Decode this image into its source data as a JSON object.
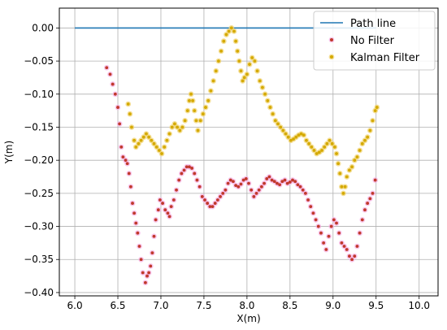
{
  "chart_data": {
    "type": "scatter",
    "title": "",
    "xlabel": "X(m)",
    "ylabel": "Y(m)",
    "xlim": [
      5.82,
      10.22
    ],
    "ylim": [
      -0.405,
      0.03
    ],
    "xticks": [
      6.0,
      6.5,
      7.0,
      7.5,
      8.0,
      8.5,
      9.0,
      9.5,
      10.0
    ],
    "xtick_labels": [
      "6.0",
      "6.5",
      "7.0",
      "7.5",
      "8.0",
      "8.5",
      "9.0",
      "9.5",
      "10.0"
    ],
    "yticks": [
      0.0,
      -0.05,
      -0.1,
      -0.15,
      -0.2,
      -0.25,
      -0.3,
      -0.35,
      -0.4
    ],
    "ytick_labels": [
      "0.00",
      "−0.05",
      "−0.10",
      "−0.15",
      "−0.20",
      "−0.25",
      "−0.30",
      "−0.35",
      "−0.40"
    ],
    "grid": true,
    "legend_position": "top-right",
    "series": [
      {
        "name": "Path line",
        "kind": "line",
        "color": "#1f77b4",
        "points": [
          [
            6.0,
            0.0
          ],
          [
            9.5,
            0.0
          ]
        ]
      },
      {
        "name": "No Filter",
        "kind": "scatter",
        "color": "#c0392b",
        "halo": "#f7b6e8",
        "points": [
          [
            6.37,
            -0.06
          ],
          [
            6.41,
            -0.07
          ],
          [
            6.44,
            -0.085
          ],
          [
            6.47,
            -0.1
          ],
          [
            6.5,
            -0.12
          ],
          [
            6.52,
            -0.145
          ],
          [
            6.54,
            -0.18
          ],
          [
            6.56,
            -0.195
          ],
          [
            6.59,
            -0.2
          ],
          [
            6.61,
            -0.205
          ],
          [
            6.63,
            -0.22
          ],
          [
            6.65,
            -0.24
          ],
          [
            6.67,
            -0.265
          ],
          [
            6.69,
            -0.28
          ],
          [
            6.71,
            -0.295
          ],
          [
            6.73,
            -0.31
          ],
          [
            6.75,
            -0.33
          ],
          [
            6.77,
            -0.35
          ],
          [
            6.79,
            -0.37
          ],
          [
            6.82,
            -0.385
          ],
          [
            6.84,
            -0.375
          ],
          [
            6.86,
            -0.37
          ],
          [
            6.88,
            -0.36
          ],
          [
            6.9,
            -0.34
          ],
          [
            6.92,
            -0.315
          ],
          [
            6.94,
            -0.29
          ],
          [
            6.97,
            -0.275
          ],
          [
            6.99,
            -0.26
          ],
          [
            7.02,
            -0.265
          ],
          [
            7.05,
            -0.275
          ],
          [
            7.08,
            -0.28
          ],
          [
            7.1,
            -0.285
          ],
          [
            7.12,
            -0.27
          ],
          [
            7.15,
            -0.26
          ],
          [
            7.18,
            -0.245
          ],
          [
            7.21,
            -0.23
          ],
          [
            7.24,
            -0.22
          ],
          [
            7.27,
            -0.215
          ],
          [
            7.3,
            -0.21
          ],
          [
            7.33,
            -0.21
          ],
          [
            7.36,
            -0.212
          ],
          [
            7.39,
            -0.22
          ],
          [
            7.42,
            -0.23
          ],
          [
            7.45,
            -0.24
          ],
          [
            7.48,
            -0.255
          ],
          [
            7.51,
            -0.26
          ],
          [
            7.54,
            -0.265
          ],
          [
            7.57,
            -0.27
          ],
          [
            7.6,
            -0.27
          ],
          [
            7.63,
            -0.265
          ],
          [
            7.66,
            -0.26
          ],
          [
            7.69,
            -0.255
          ],
          [
            7.72,
            -0.25
          ],
          [
            7.75,
            -0.245
          ],
          [
            7.78,
            -0.235
          ],
          [
            7.81,
            -0.23
          ],
          [
            7.84,
            -0.232
          ],
          [
            7.87,
            -0.238
          ],
          [
            7.9,
            -0.24
          ],
          [
            7.93,
            -0.236
          ],
          [
            7.96,
            -0.23
          ],
          [
            7.99,
            -0.228
          ],
          [
            8.02,
            -0.235
          ],
          [
            8.05,
            -0.245
          ],
          [
            8.08,
            -0.255
          ],
          [
            8.11,
            -0.25
          ],
          [
            8.14,
            -0.245
          ],
          [
            8.17,
            -0.24
          ],
          [
            8.2,
            -0.235
          ],
          [
            8.23,
            -0.228
          ],
          [
            8.26,
            -0.225
          ],
          [
            8.29,
            -0.23
          ],
          [
            8.32,
            -0.232
          ],
          [
            8.35,
            -0.235
          ],
          [
            8.38,
            -0.237
          ],
          [
            8.41,
            -0.232
          ],
          [
            8.44,
            -0.23
          ],
          [
            8.47,
            -0.235
          ],
          [
            8.5,
            -0.233
          ],
          [
            8.53,
            -0.23
          ],
          [
            8.56,
            -0.232
          ],
          [
            8.59,
            -0.237
          ],
          [
            8.62,
            -0.24
          ],
          [
            8.65,
            -0.245
          ],
          [
            8.68,
            -0.25
          ],
          [
            8.71,
            -0.26
          ],
          [
            8.74,
            -0.27
          ],
          [
            8.77,
            -0.28
          ],
          [
            8.8,
            -0.29
          ],
          [
            8.83,
            -0.3
          ],
          [
            8.86,
            -0.31
          ],
          [
            8.89,
            -0.325
          ],
          [
            8.92,
            -0.335
          ],
          [
            8.95,
            -0.315
          ],
          [
            8.98,
            -0.3
          ],
          [
            9.01,
            -0.29
          ],
          [
            9.04,
            -0.295
          ],
          [
            9.07,
            -0.31
          ],
          [
            9.1,
            -0.325
          ],
          [
            9.13,
            -0.33
          ],
          [
            9.16,
            -0.335
          ],
          [
            9.19,
            -0.345
          ],
          [
            9.22,
            -0.35
          ],
          [
            9.25,
            -0.345
          ],
          [
            9.28,
            -0.33
          ],
          [
            9.31,
            -0.31
          ],
          [
            9.34,
            -0.29
          ],
          [
            9.37,
            -0.275
          ],
          [
            9.4,
            -0.265
          ],
          [
            9.43,
            -0.258
          ],
          [
            9.46,
            -0.25
          ],
          [
            9.49,
            -0.23
          ]
        ]
      },
      {
        "name": "Kalman Filter",
        "kind": "scatter",
        "color": "#d4a900",
        "halo": "#f2d57a",
        "points": [
          [
            6.62,
            -0.115
          ],
          [
            6.64,
            -0.13
          ],
          [
            6.66,
            -0.15
          ],
          [
            6.69,
            -0.17
          ],
          [
            6.71,
            -0.18
          ],
          [
            6.74,
            -0.175
          ],
          [
            6.77,
            -0.17
          ],
          [
            6.8,
            -0.165
          ],
          [
            6.83,
            -0.16
          ],
          [
            6.86,
            -0.165
          ],
          [
            6.89,
            -0.17
          ],
          [
            6.92,
            -0.175
          ],
          [
            6.95,
            -0.18
          ],
          [
            6.98,
            -0.185
          ],
          [
            7.01,
            -0.19
          ],
          [
            7.04,
            -0.18
          ],
          [
            7.07,
            -0.17
          ],
          [
            7.1,
            -0.16
          ],
          [
            7.13,
            -0.15
          ],
          [
            7.16,
            -0.145
          ],
          [
            7.19,
            -0.15
          ],
          [
            7.22,
            -0.155
          ],
          [
            7.25,
            -0.15
          ],
          [
            7.28,
            -0.14
          ],
          [
            7.31,
            -0.125
          ],
          [
            7.33,
            -0.11
          ],
          [
            7.35,
            -0.1
          ],
          [
            7.37,
            -0.11
          ],
          [
            7.39,
            -0.125
          ],
          [
            7.41,
            -0.14
          ],
          [
            7.43,
            -0.155
          ],
          [
            7.46,
            -0.14
          ],
          [
            7.49,
            -0.13
          ],
          [
            7.52,
            -0.12
          ],
          [
            7.55,
            -0.11
          ],
          [
            7.58,
            -0.095
          ],
          [
            7.61,
            -0.08
          ],
          [
            7.64,
            -0.065
          ],
          [
            7.67,
            -0.05
          ],
          [
            7.7,
            -0.035
          ],
          [
            7.73,
            -0.02
          ],
          [
            7.76,
            -0.01
          ],
          [
            7.79,
            -0.005
          ],
          [
            7.82,
            0.0
          ],
          [
            7.85,
            -0.005
          ],
          [
            7.87,
            -0.02
          ],
          [
            7.89,
            -0.035
          ],
          [
            7.91,
            -0.05
          ],
          [
            7.93,
            -0.065
          ],
          [
            7.95,
            -0.08
          ],
          [
            7.97,
            -0.075
          ],
          [
            8.0,
            -0.07
          ],
          [
            8.03,
            -0.055
          ],
          [
            8.06,
            -0.045
          ],
          [
            8.09,
            -0.05
          ],
          [
            8.12,
            -0.065
          ],
          [
            8.15,
            -0.08
          ],
          [
            8.18,
            -0.09
          ],
          [
            8.21,
            -0.1
          ],
          [
            8.24,
            -0.11
          ],
          [
            8.27,
            -0.12
          ],
          [
            8.3,
            -0.13
          ],
          [
            8.33,
            -0.14
          ],
          [
            8.36,
            -0.145
          ],
          [
            8.39,
            -0.15
          ],
          [
            8.42,
            -0.155
          ],
          [
            8.45,
            -0.16
          ],
          [
            8.48,
            -0.165
          ],
          [
            8.51,
            -0.17
          ],
          [
            8.54,
            -0.168
          ],
          [
            8.57,
            -0.165
          ],
          [
            8.6,
            -0.162
          ],
          [
            8.63,
            -0.16
          ],
          [
            8.66,
            -0.162
          ],
          [
            8.69,
            -0.17
          ],
          [
            8.72,
            -0.175
          ],
          [
            8.75,
            -0.18
          ],
          [
            8.78,
            -0.185
          ],
          [
            8.81,
            -0.19
          ],
          [
            8.84,
            -0.188
          ],
          [
            8.87,
            -0.185
          ],
          [
            8.9,
            -0.18
          ],
          [
            8.93,
            -0.175
          ],
          [
            8.96,
            -0.17
          ],
          [
            8.99,
            -0.175
          ],
          [
            9.02,
            -0.18
          ],
          [
            9.04,
            -0.19
          ],
          [
            9.06,
            -0.205
          ],
          [
            9.08,
            -0.22
          ],
          [
            9.1,
            -0.24
          ],
          [
            9.12,
            -0.25
          ],
          [
            9.14,
            -0.24
          ],
          [
            9.16,
            -0.225
          ],
          [
            9.19,
            -0.215
          ],
          [
            9.22,
            -0.21
          ],
          [
            9.25,
            -0.2
          ],
          [
            9.28,
            -0.195
          ],
          [
            9.31,
            -0.185
          ],
          [
            9.34,
            -0.175
          ],
          [
            9.37,
            -0.17
          ],
          [
            9.4,
            -0.165
          ],
          [
            9.43,
            -0.155
          ],
          [
            9.46,
            -0.14
          ],
          [
            9.49,
            -0.125
          ],
          [
            9.51,
            -0.12
          ]
        ]
      }
    ]
  }
}
